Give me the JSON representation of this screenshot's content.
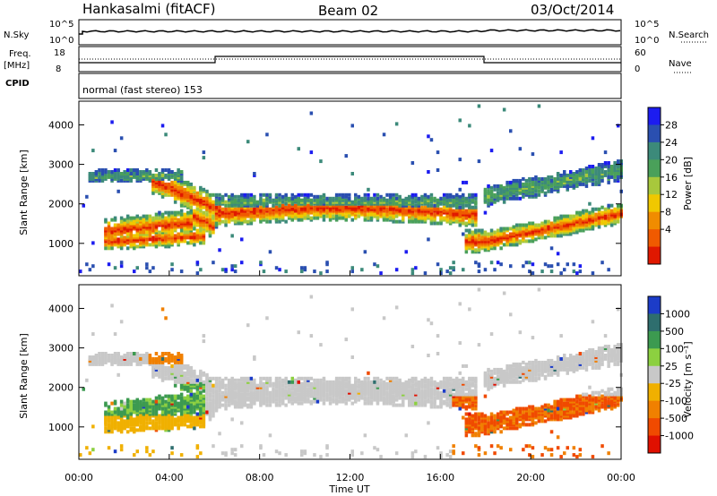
{
  "header": {
    "station": "Hankasalmi (fitACF)",
    "beam": "Beam 02",
    "date": "03/Oct/2014"
  },
  "status_panels": {
    "nsky_label": "N.Sky",
    "nsky_ticks": [
      "10^5",
      "10^0"
    ],
    "nsearch_label": "N.Search",
    "nsearch_ticks": [
      "10^5",
      "10^0"
    ],
    "freq_label": "Freq.",
    "freq_unit": "[MHz]",
    "freq_ticks": [
      "18",
      "8"
    ],
    "nave_label": "Nave",
    "nave_ticks": [
      "60",
      "0"
    ],
    "cpid_label": "CPID",
    "cpid_text": "normal (fast stereo) 153"
  },
  "time_axis": {
    "ticks": [
      "00:00",
      "04:00",
      "08:00",
      "12:00",
      "16:00",
      "20:00",
      "00:00"
    ],
    "label": "Time UT"
  },
  "power_panel": {
    "ylabel": "Slant Range [km]",
    "yticks": [
      "4000",
      "3000",
      "2000",
      "1000"
    ],
    "colorbar_label": "Power [dB]",
    "colorbar_ticks": [
      "28",
      "24",
      "20",
      "16",
      "12",
      "8",
      "4"
    ],
    "colors": [
      "#1c1cf0",
      "#2a4fb0",
      "#3c8a7a",
      "#4aa05a",
      "#a8c83c",
      "#f0c800",
      "#f08c00",
      "#f05a00",
      "#e01800"
    ]
  },
  "velocity_panel": {
    "ylabel": "Slant Range [km]",
    "yticks": [
      "4000",
      "3000",
      "2000",
      "1000"
    ],
    "colorbar_label": "Velocity [m s⁻¹]",
    "colorbar_ticks": [
      "1000",
      "500",
      "100",
      "25",
      "-25",
      "-100",
      "-500",
      "-1000"
    ],
    "colors": [
      "#1c3cc8",
      "#2e6e6e",
      "#3c9a50",
      "#8cd040",
      "#c8c8c8",
      "#f0b000",
      "#f08000",
      "#f04a00",
      "#e01000"
    ]
  },
  "chart_data": {
    "type": "heatmap",
    "title": "Hankasalmi (fitACF)",
    "x_range_hours": [
      0,
      24
    ],
    "y_range_km": [
      180,
      4600
    ],
    "power_bands": [
      {
        "band": "main F-region echo",
        "t_start": 1,
        "t_end": 17.5,
        "range_km": [
          1200,
          2300
        ],
        "peak_power_db": 28
      },
      {
        "band": "early near-range echo",
        "t_start": 1,
        "t_end": 5,
        "range_km": [
          900,
          1800
        ],
        "peak_power_db": 28
      },
      {
        "band": "dusk echo",
        "t_start": 18,
        "t_end": 24,
        "range_km": [
          800,
          2900
        ],
        "peak_power_db": 24
      }
    ],
    "velocity_bands": [
      {
        "band": "main echo",
        "t_start": 6,
        "t_end": 17.5,
        "range_km": [
          1300,
          2200
        ],
        "velocity_ms": "-25 to 25"
      },
      {
        "band": "early green echo",
        "t_start": 1,
        "t_end": 5,
        "range_km": [
          1100,
          2000
        ],
        "velocity_ms": "100 to 500"
      },
      {
        "band": "dusk orange echo",
        "t_start": 16.5,
        "t_end": 23.5,
        "range_km": [
          900,
          1700
        ],
        "velocity_ms": "-100 to -500"
      }
    ]
  }
}
